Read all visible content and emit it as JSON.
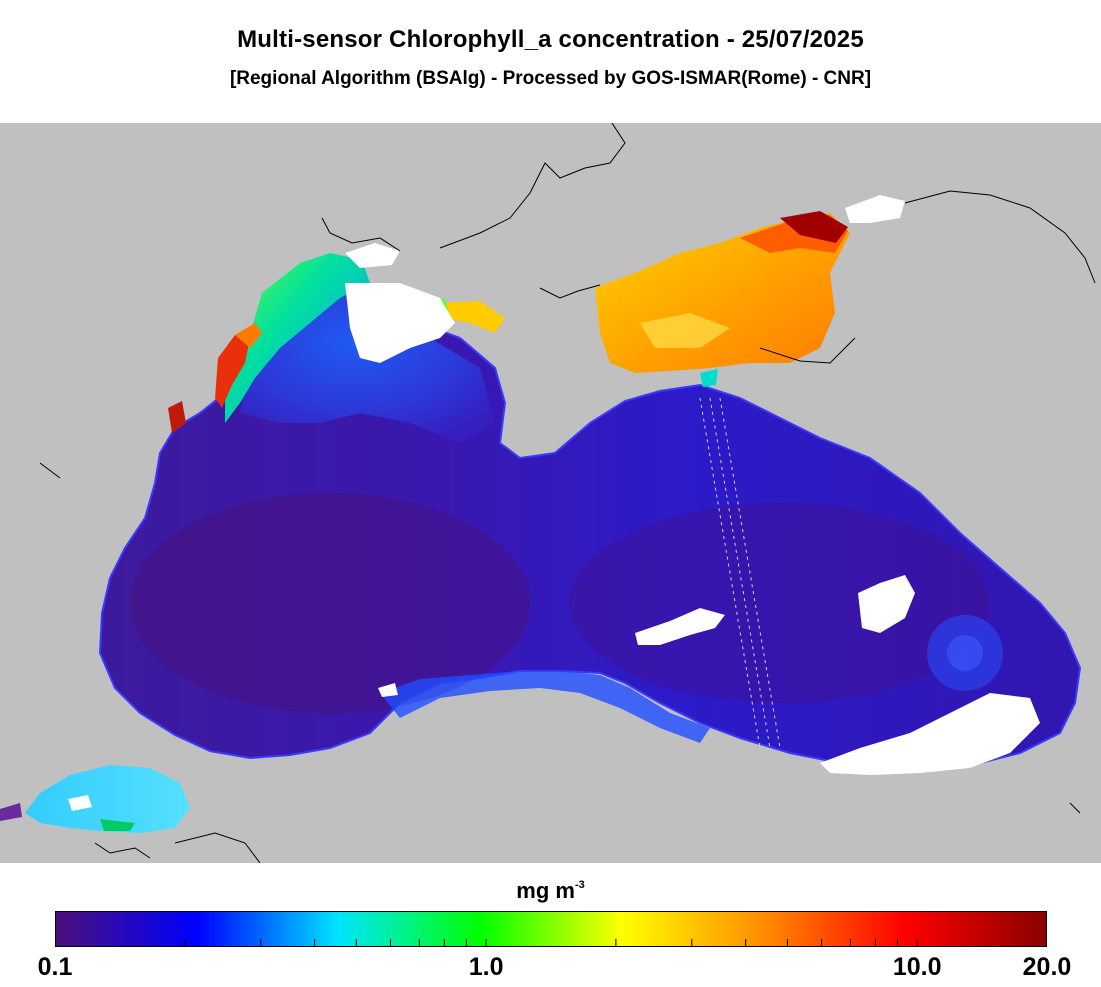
{
  "header": {
    "title": "Multi-sensor Chlorophyll_a concentration - 25/07/2025",
    "subtitle": "[Regional Algorithm (BSAlg) - Processed by GOS-ISMAR(Rome) - CNR]"
  },
  "colorbar": {
    "unit_base": "mg m",
    "unit_exponent": "-3",
    "scale": "log",
    "range": [
      0.1,
      20.0
    ],
    "tick_labels": [
      "0.1",
      "1.0",
      "10.0",
      "20.0"
    ],
    "colors": [
      "#4b0f7a",
      "#0000ff",
      "#00e5ff",
      "#00ff00",
      "#ffff00",
      "#ff8c00",
      "#ff0000",
      "#8b0000"
    ]
  },
  "map_colors": {
    "land": "#c0c0c0",
    "no_data": "#ffffff",
    "coastline": "#000000"
  }
}
